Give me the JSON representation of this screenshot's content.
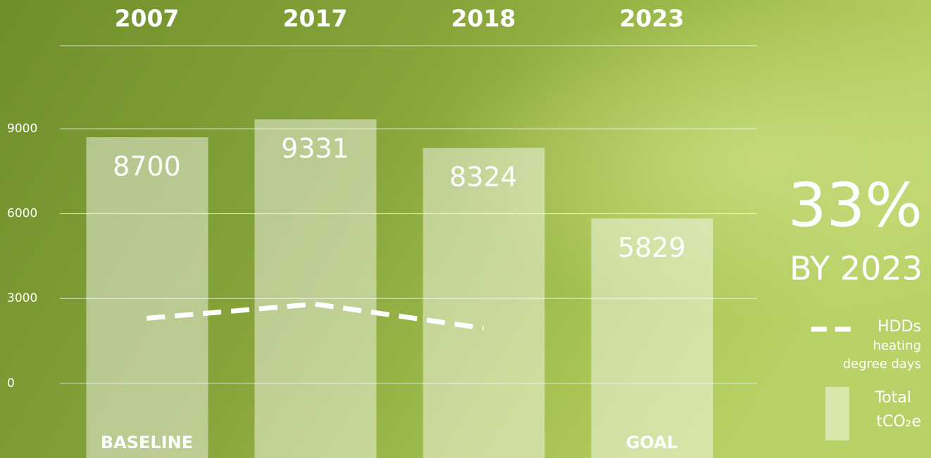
{
  "chart_data": {
    "type": "bar",
    "categories": [
      "2007",
      "2017",
      "2018",
      "2023"
    ],
    "bar_labels": [
      "BASELINE",
      null,
      null,
      "GOAL"
    ],
    "series": [
      {
        "name": "Total",
        "unit": "tCO₂e",
        "type": "bar",
        "color": "#ffffff",
        "values": [
          8700,
          9331,
          8324,
          5829
        ]
      },
      {
        "name": "HDDs",
        "description": [
          "heating",
          "degree days"
        ],
        "type": "line",
        "dashed": true,
        "color": "#ffffff",
        "values": [
          2300,
          2800,
          1950,
          null
        ]
      }
    ],
    "ylim": [
      -2640,
      13550
    ],
    "yticks": [
      0,
      3000,
      6000,
      9000
    ],
    "grid": true,
    "annotations": [
      "33%",
      "BY 2023"
    ]
  }
}
